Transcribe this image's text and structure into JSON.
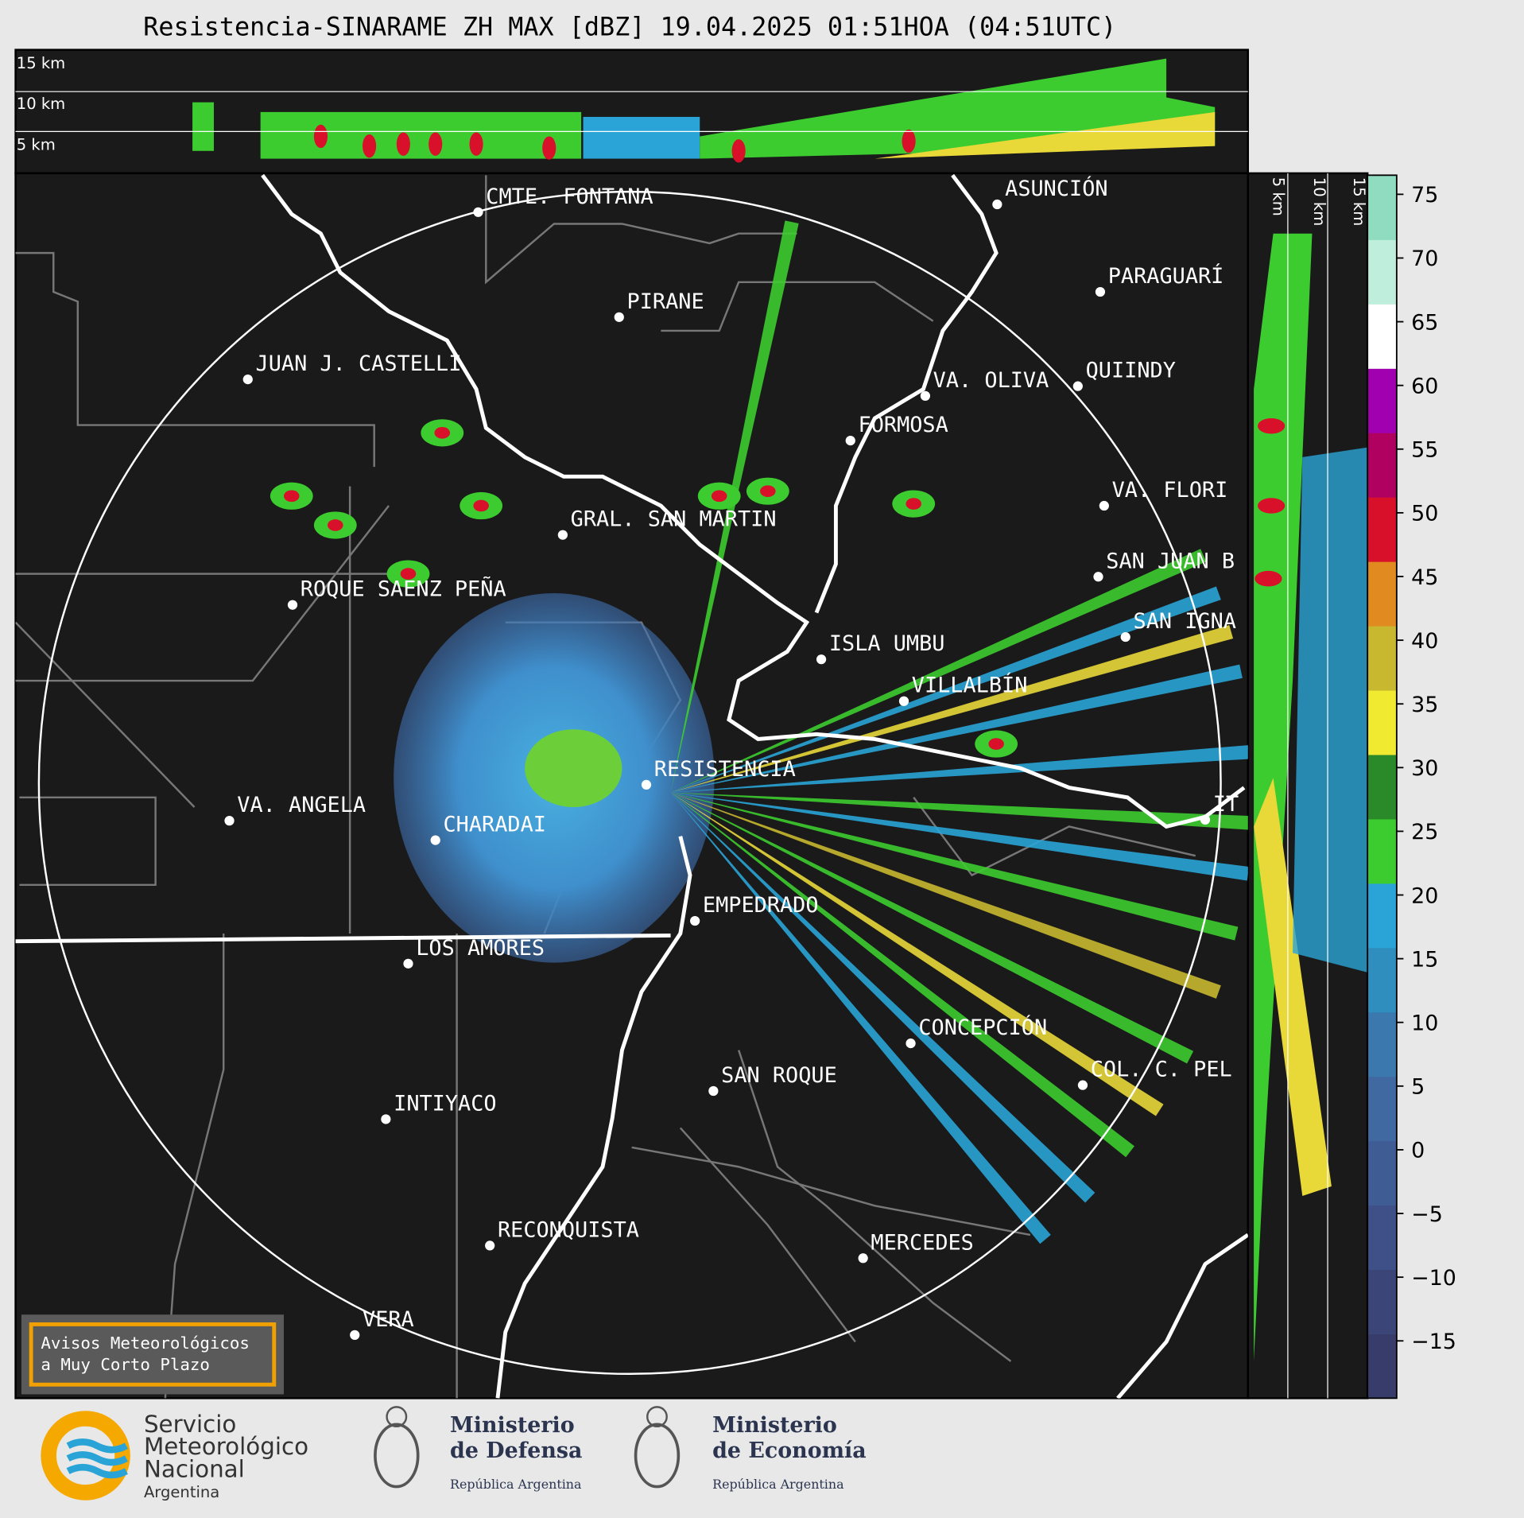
{
  "title": "Resistencia-SINARAME ZH MAX [dBZ] 19.04.2025 01:51HOA (04:51UTC)",
  "height_labels": [
    "15 km",
    "10 km",
    "5 km"
  ],
  "side_height_labels": [
    "5 km",
    "10 km",
    "15 km"
  ],
  "places": [
    "CMTE. FONTANA",
    "ASUNCIÓN",
    "PARAGUARÍ",
    "PIRANE",
    "JUAN J. CASTELLI",
    "VA. OLIVA",
    "QUIINDY",
    "FORMOSA",
    "VA. FLORI",
    "GRAL. SAN MARTIN",
    "SAN JUAN B",
    "ROQUE SAENZ PEÑA",
    "SAN IGNA",
    "ISLA UMBU",
    "VILLALBÍN",
    "RESISTENCIA",
    "IT",
    "VA. ANGELA",
    "CHARADAI",
    "EMPEDRADO",
    "LOS AMORES",
    "CONCEPCIÓN",
    "COL. C. PEL",
    "SAN ROQUE",
    "INTIYACO",
    "RECONQUISTA",
    "MERCEDES",
    "VERA"
  ],
  "colorbar": {
    "clim": [
      -19.5,
      76.5
    ],
    "ticks": [
      {
        "value": -15,
        "label": "−15"
      },
      {
        "value": -10,
        "label": "−10"
      },
      {
        "value": -5,
        "label": "−5"
      },
      0,
      5,
      10,
      15,
      20,
      25,
      30,
      35,
      40,
      45,
      50,
      55,
      60,
      65,
      70,
      75
    ],
    "colors": [
      "#383c6a",
      "#3b4578",
      "#3e5087",
      "#405c94",
      "#3f69a0",
      "#3a78ad",
      "#2f8ebe",
      "#2aa4d6",
      "#3dcc30",
      "#2a8a2a",
      "#f0ea30",
      "#c8b830",
      "#e08a20",
      "#d8102a",
      "#b00060",
      "#a000b0",
      "#ffffff",
      "#bfeedd",
      "#8fdcc0"
    ]
  },
  "notice": [
    "Avisos Meteorológicos",
    "a Muy Corto Plazo"
  ],
  "logos": [
    {
      "lines": [
        "Servicio",
        "Meteorológico",
        "Nacional"
      ],
      "sub": "Argentina"
    },
    {
      "lines": [
        "Ministerio",
        "de Defensa"
      ],
      "sub": "República Argentina"
    },
    {
      "lines": [
        "Ministerio",
        "de Economía"
      ],
      "sub": "República Argentina"
    }
  ]
}
